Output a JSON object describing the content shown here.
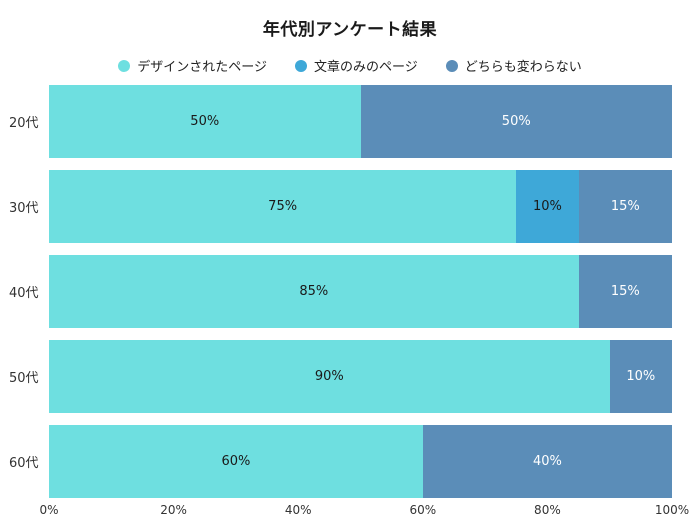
{
  "title": "年代別アンケート結果",
  "background_color": "#ffffff",
  "chart_data": {
    "type": "bar",
    "orientation": "horizontal",
    "stacked": true,
    "percent_stacked": true,
    "title": "年代別アンケート結果",
    "categories": [
      "20代",
      "30代",
      "40代",
      "50代",
      "60代"
    ],
    "series": [
      {
        "name": "デザインされたページ",
        "color": "#6EDFE0",
        "label_color": "#1a1a1a",
        "values": [
          50,
          75,
          85,
          90,
          60
        ]
      },
      {
        "name": "文章のみのページ",
        "color": "#3EA8D8",
        "label_color": "#1a1a1a",
        "values": [
          0,
          10,
          0,
          0,
          0
        ]
      },
      {
        "name": "どちらも変わらない",
        "color": "#5B8DB8",
        "label_color": "#ffffff",
        "values": [
          50,
          15,
          15,
          10,
          40
        ]
      }
    ],
    "x_ticks": [
      "0%",
      "20%",
      "40%",
      "60%",
      "80%",
      "100%"
    ],
    "xlim": [
      0,
      100
    ],
    "legend_position": "top",
    "grid": false
  }
}
